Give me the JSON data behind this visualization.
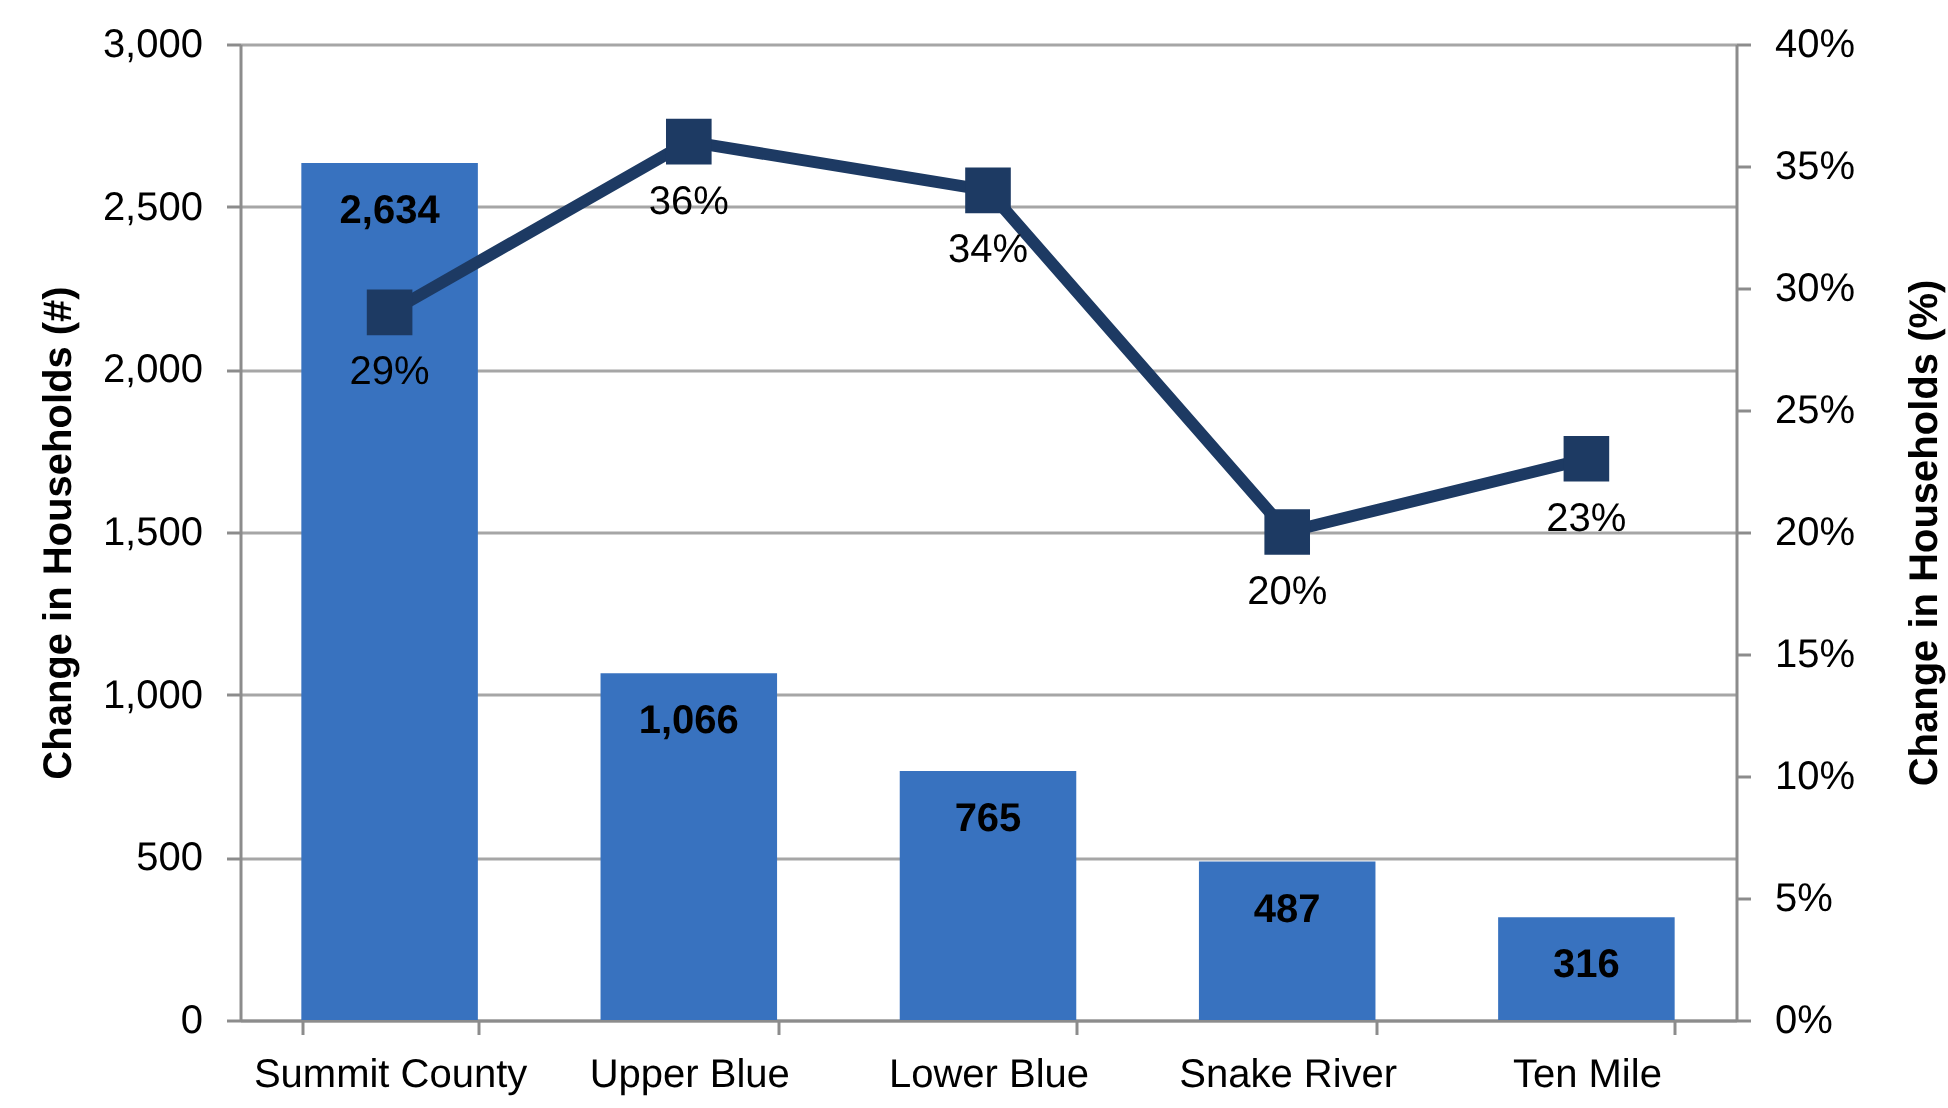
{
  "chart_data": {
    "type": "bar",
    "categories": [
      "Summit County",
      "Upper Blue",
      "Lower Blue",
      "Snake River",
      "Ten Mile"
    ],
    "ylabel": "Change in Households (#)",
    "y2label": "Change in Households (%)",
    "ylim": [
      0,
      3000
    ],
    "yticks": [
      0,
      500,
      {
        "value": 1000,
        "label": "1,000"
      },
      {
        "value": 1500,
        "label": "1,500"
      },
      {
        "value": 2000,
        "label": "2,000"
      },
      {
        "value": 2500,
        "label": "2,500"
      },
      {
        "value": 3000,
        "label": "3,000"
      }
    ],
    "y2lim": [
      0,
      40
    ],
    "y2ticks": [
      {
        "value": 0,
        "label": "0%"
      },
      {
        "value": 5,
        "label": "5%"
      },
      {
        "value": 10,
        "label": "10%"
      },
      {
        "value": 15,
        "label": "15%"
      },
      {
        "value": 20,
        "label": "20%"
      },
      {
        "value": 25,
        "label": "25%"
      },
      {
        "value": 30,
        "label": "30%"
      },
      {
        "value": 35,
        "label": "35%"
      },
      {
        "value": 40,
        "label": "40%"
      }
    ],
    "grid": "y",
    "marker": "square",
    "series": [
      {
        "color": "#3872bf",
        "values": [
          2634,
          1066,
          765,
          487,
          316
        ],
        "value_labels": [
          "2,634",
          "1,066",
          "765",
          "487",
          "316"
        ]
      },
      {
        "type": "line",
        "axis": "y2",
        "color": "#1d3a63",
        "values": [
          29,
          36,
          34,
          20,
          23
        ],
        "value_labels": [
          "29%",
          "36%",
          "34%",
          "20%",
          "23%"
        ]
      }
    ]
  }
}
